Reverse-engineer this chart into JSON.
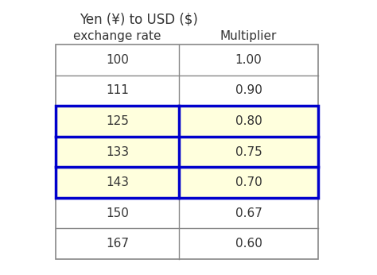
{
  "title_line1": "Yen (¥) to USD ($)",
  "col1_header": "exchange rate",
  "col2_header": "Multiplier",
  "rows": [
    [
      "100",
      "1.00"
    ],
    [
      "111",
      "0.90"
    ],
    [
      "125",
      "0.80"
    ],
    [
      "133",
      "0.75"
    ],
    [
      "143",
      "0.70"
    ],
    [
      "150",
      "0.67"
    ],
    [
      "167",
      "0.60"
    ]
  ],
  "highlighted_rows": [
    2,
    3,
    4
  ],
  "highlight_color": "#FFFFDD",
  "highlight_border_color": "#0000CC",
  "normal_bg": "#FFFFFF",
  "grid_color": "#888888",
  "text_color": "#333333",
  "header_color": "#333333",
  "background": "#FFFFFF",
  "title_fontsize": 12,
  "header_fontsize": 11,
  "cell_fontsize": 11
}
